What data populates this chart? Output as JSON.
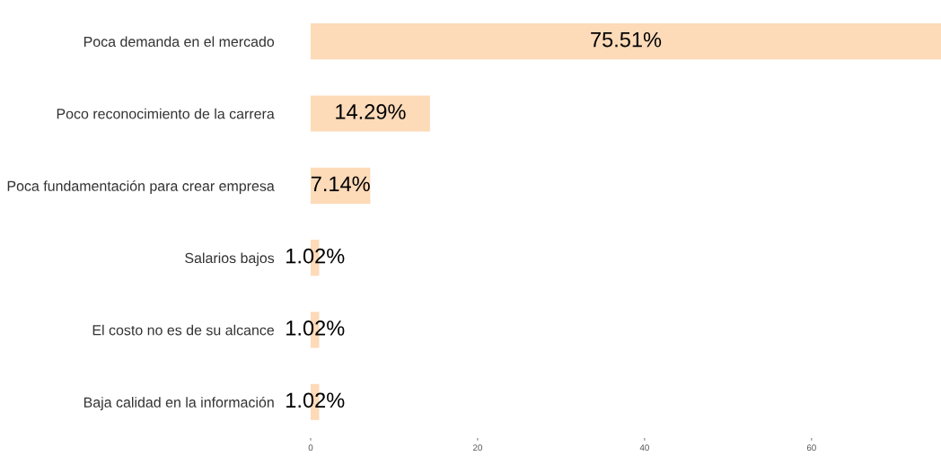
{
  "chart_data": {
    "type": "bar",
    "orientation": "horizontal",
    "categories": [
      "Poca demanda en el mercado",
      "Poco reconocimiento de la carrera",
      "Poca fundamentación para crear empresa",
      "Salarios bajos",
      "El costo no es de su alcance",
      "Baja calidad en la información"
    ],
    "values": [
      75.51,
      14.29,
      7.14,
      1.02,
      1.02,
      1.02
    ],
    "value_labels": [
      "75.51%",
      "14.29%",
      "7.14%",
      "1.02%",
      "1.02%",
      "1.02%"
    ],
    "color": "#fddab8",
    "xlim": [
      0,
      75.51
    ],
    "xticks": [
      0,
      20,
      40,
      60
    ],
    "grid": false
  }
}
